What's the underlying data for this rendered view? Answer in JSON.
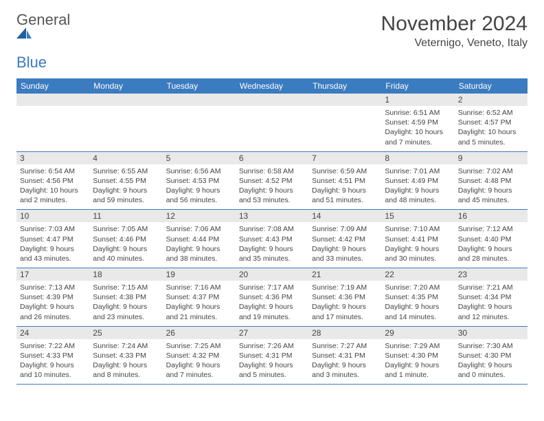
{
  "brand": {
    "name_part1": "General",
    "name_part2": "Blue"
  },
  "title": "November 2024",
  "location": "Veternigo, Veneto, Italy",
  "colors": {
    "header_bg": "#3b7bbf",
    "header_fg": "#ffffff",
    "daynum_bg": "#e9e9e9",
    "text": "#444444",
    "rule": "#3b7bbf",
    "background": "#ffffff"
  },
  "typography": {
    "title_fontsize": 30,
    "location_fontsize": 16,
    "header_fontsize": 12,
    "daynum_fontsize": 12,
    "info_fontsize": 10.5
  },
  "day_headers": [
    "Sunday",
    "Monday",
    "Tuesday",
    "Wednesday",
    "Thursday",
    "Friday",
    "Saturday"
  ],
  "weeks": [
    [
      {
        "n": "",
        "sunrise": "",
        "sunset": "",
        "daylight": ""
      },
      {
        "n": "",
        "sunrise": "",
        "sunset": "",
        "daylight": ""
      },
      {
        "n": "",
        "sunrise": "",
        "sunset": "",
        "daylight": ""
      },
      {
        "n": "",
        "sunrise": "",
        "sunset": "",
        "daylight": ""
      },
      {
        "n": "",
        "sunrise": "",
        "sunset": "",
        "daylight": ""
      },
      {
        "n": "1",
        "sunrise": "Sunrise: 6:51 AM",
        "sunset": "Sunset: 4:59 PM",
        "daylight": "Daylight: 10 hours and 7 minutes."
      },
      {
        "n": "2",
        "sunrise": "Sunrise: 6:52 AM",
        "sunset": "Sunset: 4:57 PM",
        "daylight": "Daylight: 10 hours and 5 minutes."
      }
    ],
    [
      {
        "n": "3",
        "sunrise": "Sunrise: 6:54 AM",
        "sunset": "Sunset: 4:56 PM",
        "daylight": "Daylight: 10 hours and 2 minutes."
      },
      {
        "n": "4",
        "sunrise": "Sunrise: 6:55 AM",
        "sunset": "Sunset: 4:55 PM",
        "daylight": "Daylight: 9 hours and 59 minutes."
      },
      {
        "n": "5",
        "sunrise": "Sunrise: 6:56 AM",
        "sunset": "Sunset: 4:53 PM",
        "daylight": "Daylight: 9 hours and 56 minutes."
      },
      {
        "n": "6",
        "sunrise": "Sunrise: 6:58 AM",
        "sunset": "Sunset: 4:52 PM",
        "daylight": "Daylight: 9 hours and 53 minutes."
      },
      {
        "n": "7",
        "sunrise": "Sunrise: 6:59 AM",
        "sunset": "Sunset: 4:51 PM",
        "daylight": "Daylight: 9 hours and 51 minutes."
      },
      {
        "n": "8",
        "sunrise": "Sunrise: 7:01 AM",
        "sunset": "Sunset: 4:49 PM",
        "daylight": "Daylight: 9 hours and 48 minutes."
      },
      {
        "n": "9",
        "sunrise": "Sunrise: 7:02 AM",
        "sunset": "Sunset: 4:48 PM",
        "daylight": "Daylight: 9 hours and 45 minutes."
      }
    ],
    [
      {
        "n": "10",
        "sunrise": "Sunrise: 7:03 AM",
        "sunset": "Sunset: 4:47 PM",
        "daylight": "Daylight: 9 hours and 43 minutes."
      },
      {
        "n": "11",
        "sunrise": "Sunrise: 7:05 AM",
        "sunset": "Sunset: 4:46 PM",
        "daylight": "Daylight: 9 hours and 40 minutes."
      },
      {
        "n": "12",
        "sunrise": "Sunrise: 7:06 AM",
        "sunset": "Sunset: 4:44 PM",
        "daylight": "Daylight: 9 hours and 38 minutes."
      },
      {
        "n": "13",
        "sunrise": "Sunrise: 7:08 AM",
        "sunset": "Sunset: 4:43 PM",
        "daylight": "Daylight: 9 hours and 35 minutes."
      },
      {
        "n": "14",
        "sunrise": "Sunrise: 7:09 AM",
        "sunset": "Sunset: 4:42 PM",
        "daylight": "Daylight: 9 hours and 33 minutes."
      },
      {
        "n": "15",
        "sunrise": "Sunrise: 7:10 AM",
        "sunset": "Sunset: 4:41 PM",
        "daylight": "Daylight: 9 hours and 30 minutes."
      },
      {
        "n": "16",
        "sunrise": "Sunrise: 7:12 AM",
        "sunset": "Sunset: 4:40 PM",
        "daylight": "Daylight: 9 hours and 28 minutes."
      }
    ],
    [
      {
        "n": "17",
        "sunrise": "Sunrise: 7:13 AM",
        "sunset": "Sunset: 4:39 PM",
        "daylight": "Daylight: 9 hours and 26 minutes."
      },
      {
        "n": "18",
        "sunrise": "Sunrise: 7:15 AM",
        "sunset": "Sunset: 4:38 PM",
        "daylight": "Daylight: 9 hours and 23 minutes."
      },
      {
        "n": "19",
        "sunrise": "Sunrise: 7:16 AM",
        "sunset": "Sunset: 4:37 PM",
        "daylight": "Daylight: 9 hours and 21 minutes."
      },
      {
        "n": "20",
        "sunrise": "Sunrise: 7:17 AM",
        "sunset": "Sunset: 4:36 PM",
        "daylight": "Daylight: 9 hours and 19 minutes."
      },
      {
        "n": "21",
        "sunrise": "Sunrise: 7:19 AM",
        "sunset": "Sunset: 4:36 PM",
        "daylight": "Daylight: 9 hours and 17 minutes."
      },
      {
        "n": "22",
        "sunrise": "Sunrise: 7:20 AM",
        "sunset": "Sunset: 4:35 PM",
        "daylight": "Daylight: 9 hours and 14 minutes."
      },
      {
        "n": "23",
        "sunrise": "Sunrise: 7:21 AM",
        "sunset": "Sunset: 4:34 PM",
        "daylight": "Daylight: 9 hours and 12 minutes."
      }
    ],
    [
      {
        "n": "24",
        "sunrise": "Sunrise: 7:22 AM",
        "sunset": "Sunset: 4:33 PM",
        "daylight": "Daylight: 9 hours and 10 minutes."
      },
      {
        "n": "25",
        "sunrise": "Sunrise: 7:24 AM",
        "sunset": "Sunset: 4:33 PM",
        "daylight": "Daylight: 9 hours and 8 minutes."
      },
      {
        "n": "26",
        "sunrise": "Sunrise: 7:25 AM",
        "sunset": "Sunset: 4:32 PM",
        "daylight": "Daylight: 9 hours and 7 minutes."
      },
      {
        "n": "27",
        "sunrise": "Sunrise: 7:26 AM",
        "sunset": "Sunset: 4:31 PM",
        "daylight": "Daylight: 9 hours and 5 minutes."
      },
      {
        "n": "28",
        "sunrise": "Sunrise: 7:27 AM",
        "sunset": "Sunset: 4:31 PM",
        "daylight": "Daylight: 9 hours and 3 minutes."
      },
      {
        "n": "29",
        "sunrise": "Sunrise: 7:29 AM",
        "sunset": "Sunset: 4:30 PM",
        "daylight": "Daylight: 9 hours and 1 minute."
      },
      {
        "n": "30",
        "sunrise": "Sunrise: 7:30 AM",
        "sunset": "Sunset: 4:30 PM",
        "daylight": "Daylight: 9 hours and 0 minutes."
      }
    ]
  ]
}
